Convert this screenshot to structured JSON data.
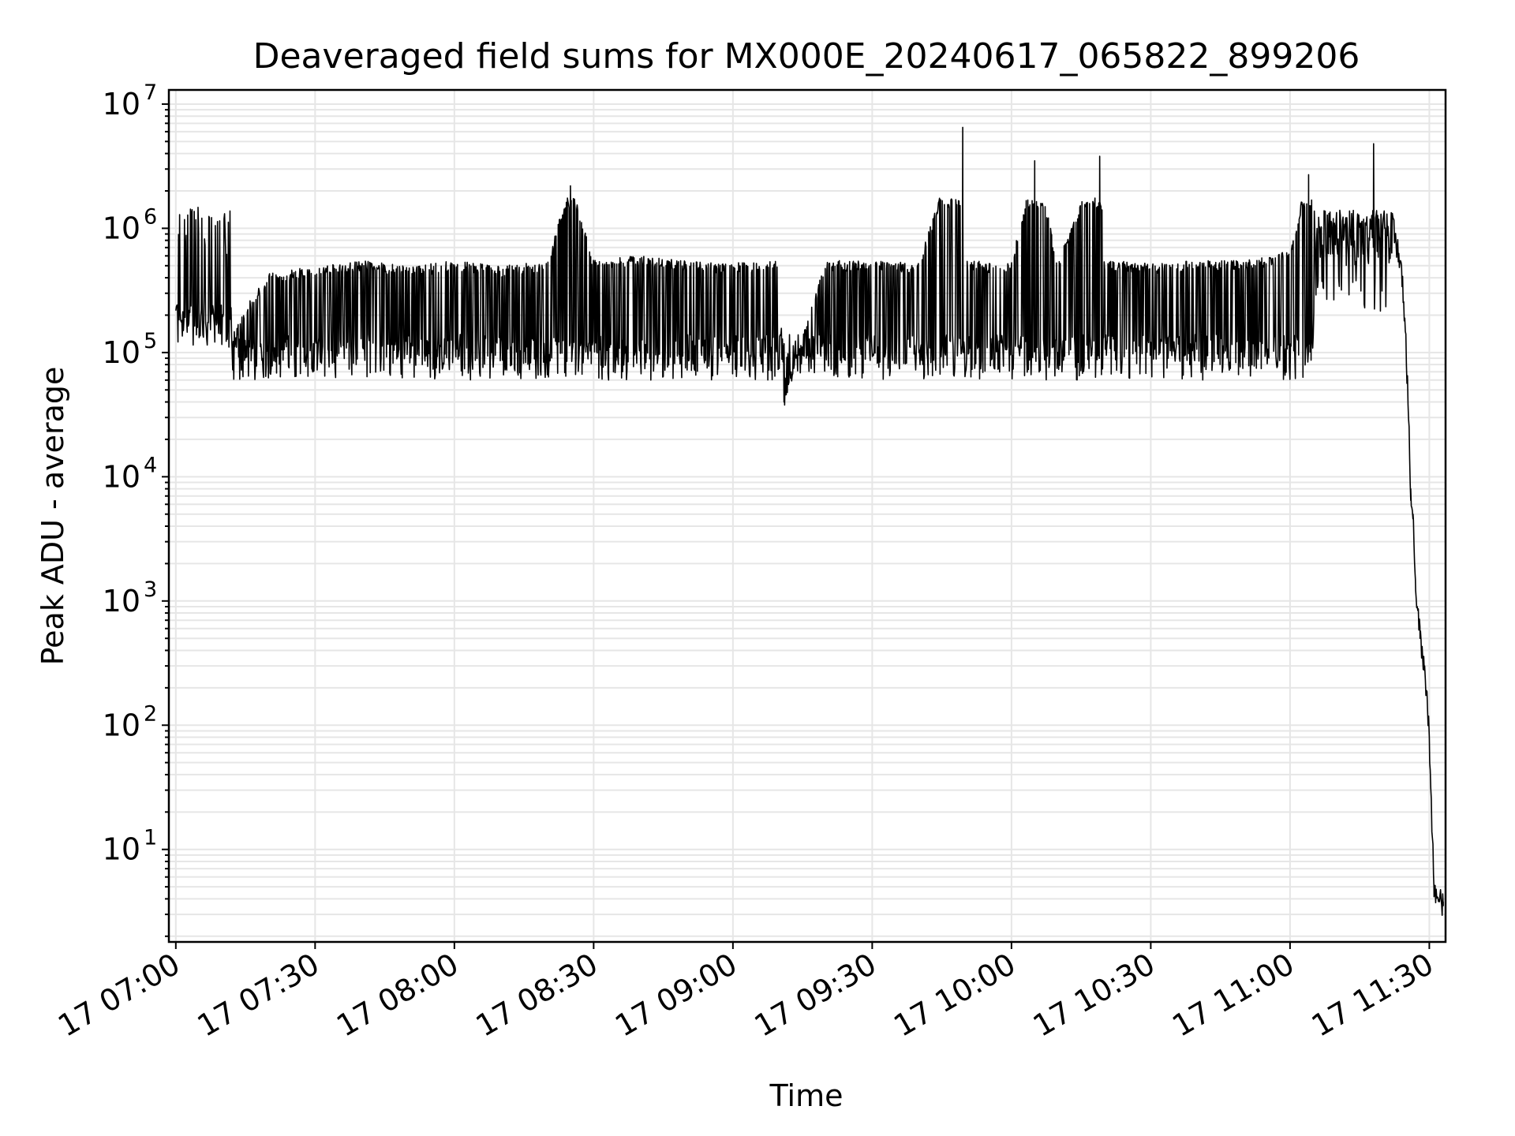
{
  "chart_data": {
    "type": "line",
    "title": "Deaveraged field sums for MX000E_20240617_065822_899206",
    "xlabel": "Time",
    "ylabel": "Peak ADU - average",
    "yscale": "log",
    "ylim": [
      1.8,
      13000000
    ],
    "xlim": [
      "2024-06-17 06:58:30",
      "2024-06-17 11:33:30"
    ],
    "grid": true,
    "x_ticks": [
      "17 07:00",
      "17 07:30",
      "17 08:00",
      "17 08:30",
      "17 09:00",
      "17 09:30",
      "17 10:00",
      "17 10:30",
      "17 11:00",
      "17 11:30"
    ],
    "y_ticks": [
      {
        "base": "10",
        "exp": "1",
        "value": 10
      },
      {
        "base": "10",
        "exp": "2",
        "value": 100
      },
      {
        "base": "10",
        "exp": "3",
        "value": 1000
      },
      {
        "base": "10",
        "exp": "4",
        "value": 10000
      },
      {
        "base": "10",
        "exp": "5",
        "value": 100000
      },
      {
        "base": "10",
        "exp": "6",
        "value": 1000000
      },
      {
        "base": "10",
        "exp": "7",
        "value": 10000000
      }
    ],
    "series": [
      {
        "color": "#000000",
        "points": [
          [
            "07:00:00",
            150000
          ],
          [
            "07:05:00",
            170000
          ],
          [
            "07:10:00",
            110000
          ],
          [
            "07:20:00",
            400000
          ],
          [
            "07:30:00",
            450000
          ],
          [
            "07:40:00",
            500000
          ],
          [
            "07:50:00",
            450000
          ],
          [
            "08:00:00",
            500000
          ],
          [
            "08:10:00",
            450000
          ],
          [
            "08:20:00",
            500000
          ],
          [
            "08:25:00",
            2200000
          ],
          [
            "08:30:00",
            500000
          ],
          [
            "08:40:00",
            550000
          ],
          [
            "08:50:00",
            500000
          ],
          [
            "09:00:00",
            480000
          ],
          [
            "09:10:00",
            500000
          ],
          [
            "09:11:00",
            40000
          ],
          [
            "09:20:00",
            500000
          ],
          [
            "09:30:00",
            500000
          ],
          [
            "09:40:00",
            480000
          ],
          [
            "09:49:30",
            6500000
          ],
          [
            "09:50:00",
            500000
          ],
          [
            "10:00:00",
            480000
          ],
          [
            "10:05:00",
            3500000
          ],
          [
            "10:10:00",
            500000
          ],
          [
            "10:19:00",
            3800000
          ],
          [
            "10:20:00",
            500000
          ],
          [
            "10:30:00",
            480000
          ],
          [
            "10:40:00",
            500000
          ],
          [
            "10:50:00",
            500000
          ],
          [
            "11:00:00",
            600000
          ],
          [
            "11:04:00",
            2700000
          ],
          [
            "11:10:00",
            700000
          ],
          [
            "11:15:00",
            800000
          ],
          [
            "11:18:00",
            4800000
          ],
          [
            "11:20:00",
            1400000
          ],
          [
            "11:22:00",
            1100000
          ],
          [
            "11:24:00",
            500000
          ],
          [
            "11:25:00",
            120000
          ],
          [
            "11:26:00",
            8000
          ],
          [
            "11:26:30",
            5000
          ],
          [
            "11:27:00",
            1500
          ],
          [
            "11:28:00",
            500
          ],
          [
            "11:29:00",
            300
          ],
          [
            "11:30:00",
            80
          ],
          [
            "11:31:00",
            5
          ],
          [
            "11:32:00",
            3.8
          ],
          [
            "11:33:00",
            3.8
          ]
        ]
      }
    ]
  }
}
